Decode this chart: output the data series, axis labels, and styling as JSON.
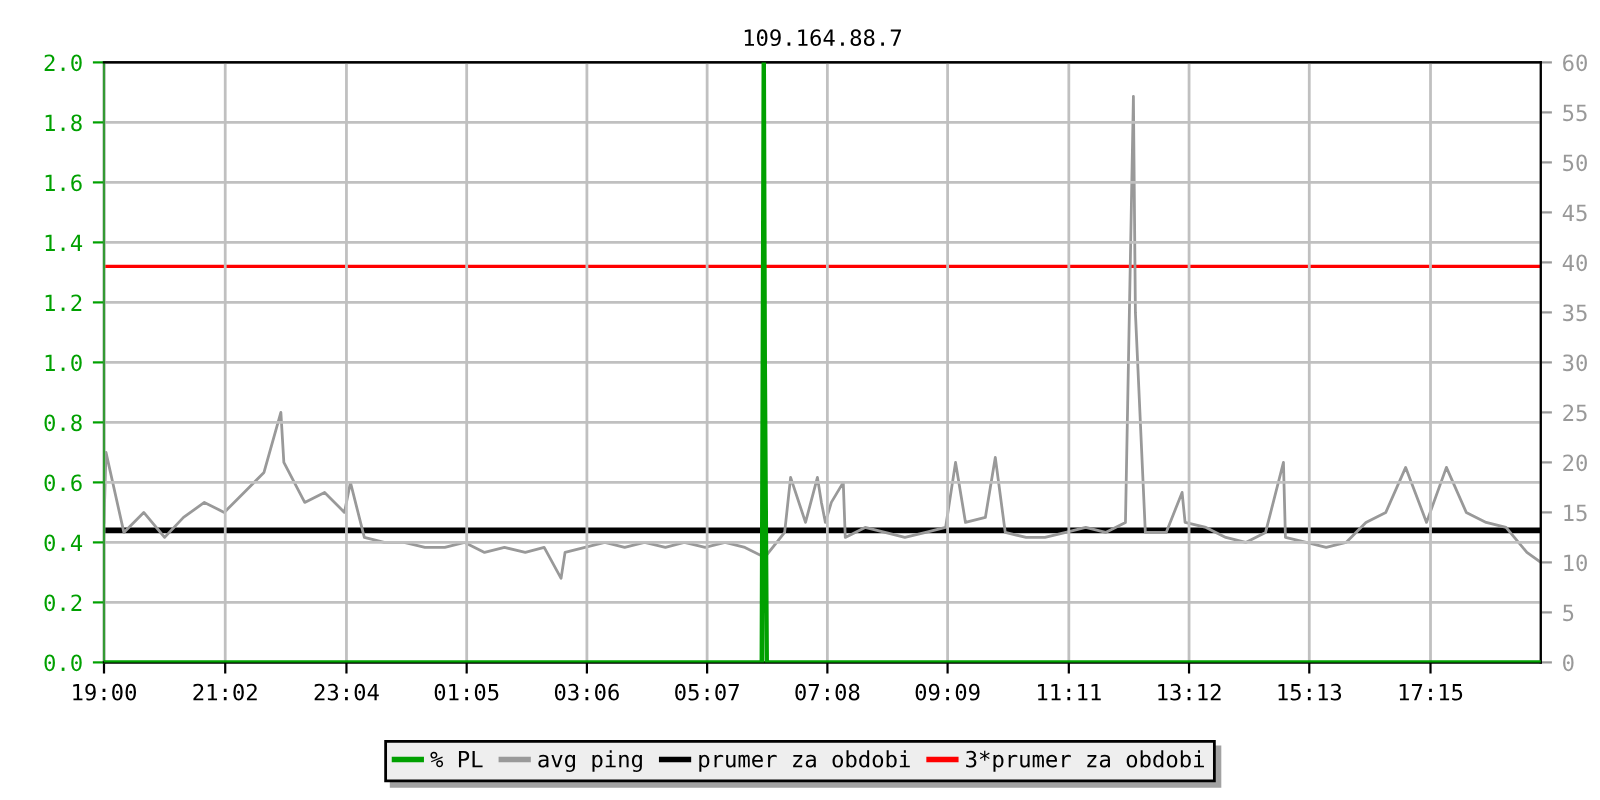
{
  "chart_data": {
    "type": "line",
    "title": "109.164.88.7",
    "xlim": [
      "2000-01-01T19:00",
      "2000-01-02T19:06"
    ],
    "xticks": [
      {
        "value": "2000-01-01T19:00",
        "label": "19:00"
      },
      {
        "value": "2000-01-01T21:02",
        "label": "21:02"
      },
      {
        "value": "2000-01-01T23:04",
        "label": "23:04"
      },
      {
        "value": "2000-01-02T01:05",
        "label": "01:05"
      },
      {
        "value": "2000-01-02T03:06",
        "label": "03:06"
      },
      {
        "value": "2000-01-02T05:07",
        "label": "05:07"
      },
      {
        "value": "2000-01-02T07:08",
        "label": "07:08"
      },
      {
        "value": "2000-01-02T09:09",
        "label": "09:09"
      },
      {
        "value": "2000-01-02T11:11",
        "label": "11:11"
      },
      {
        "value": "2000-01-02T13:12",
        "label": "13:12"
      },
      {
        "value": "2000-01-02T15:13",
        "label": "15:13"
      },
      {
        "value": "2000-01-02T17:15",
        "label": "17:15"
      }
    ],
    "ylim": [
      0,
      2.0
    ],
    "yticks": [
      {
        "value": 0,
        "label": "0.0"
      },
      {
        "value": 0.2,
        "label": "0.2"
      },
      {
        "value": 0.4,
        "label": "0.4"
      },
      {
        "value": 0.6,
        "label": "0.6"
      },
      {
        "value": 0.8,
        "label": "0.8"
      },
      {
        "value": 1.0,
        "label": "1.0"
      },
      {
        "value": 1.2,
        "label": "1.2"
      },
      {
        "value": 1.4,
        "label": "1.4"
      },
      {
        "value": 1.6,
        "label": "1.6"
      },
      {
        "value": 1.8,
        "label": "1.8"
      },
      {
        "value": 2.0,
        "label": "2.0"
      }
    ],
    "y2lim": [
      0,
      60
    ],
    "y2ticks": [
      0,
      5,
      10,
      15,
      20,
      25,
      30,
      35,
      40,
      45,
      50,
      55,
      60
    ],
    "grid": true,
    "legend": "bottom",
    "marker": "none",
    "line_style": "solid",
    "series": [
      {
        "name": "% PL",
        "color": "#00a000",
        "x": [
          "2000-01-01T19:00",
          "2000-01-02T06:02",
          "2000-01-02T06:04",
          "2000-01-02T06:05",
          "2000-01-02T06:07",
          "2000-01-02T19:06"
        ],
        "values": [
          0,
          0,
          2.0,
          1.0,
          0,
          0
        ]
      },
      {
        "name": "avg ping",
        "color": "#999999",
        "axis": "y2",
        "x": [
          "2000-01-01T19:00",
          "2000-01-01T19:02",
          "2000-01-01T19:20",
          "2000-01-01T19:40",
          "2000-01-01T20:01",
          "2000-01-01T20:20",
          "2000-01-01T20:41",
          "2000-01-01T21:01",
          "2000-01-01T21:21",
          "2000-01-01T21:41",
          "2000-01-01T21:58",
          "2000-01-01T22:01",
          "2000-01-01T22:22",
          "2000-01-01T22:42",
          "2000-01-01T23:02",
          "2000-01-01T23:08",
          "2000-01-01T23:22",
          "2000-01-01T23:42",
          "2000-01-02T00:02",
          "2000-01-02T00:23",
          "2000-01-02T00:43",
          "2000-01-02T01:03",
          "2000-01-02T01:23",
          "2000-01-02T01:43",
          "2000-01-02T02:04",
          "2000-01-02T02:23",
          "2000-01-02T02:40",
          "2000-01-02T02:44",
          "2000-01-02T03:04",
          "2000-01-02T03:24",
          "2000-01-02T03:44",
          "2000-01-02T04:04",
          "2000-01-02T04:25",
          "2000-01-02T04:44",
          "2000-01-02T05:05",
          "2000-01-02T05:25",
          "2000-01-02T05:45",
          "2000-01-02T06:05",
          "2000-01-02T06:25",
          "2000-01-02T06:31",
          "2000-01-02T06:46",
          "2000-01-02T06:58",
          "2000-01-02T07:02",
          "2000-01-02T07:06",
          "2000-01-02T07:12",
          "2000-01-02T07:24",
          "2000-01-02T07:26",
          "2000-01-02T07:46",
          "2000-01-02T08:06",
          "2000-01-02T08:26",
          "2000-01-02T08:47",
          "2000-01-02T09:07",
          "2000-01-02T09:17",
          "2000-01-02T09:27",
          "2000-01-02T09:47",
          "2000-01-02T09:57",
          "2000-01-02T10:07",
          "2000-01-02T10:28",
          "2000-01-02T10:47",
          "2000-01-02T11:08",
          "2000-01-02T11:28",
          "2000-01-02T11:48",
          "2000-01-02T12:08",
          "2000-01-02T12:16",
          "2000-01-02T12:18",
          "2000-01-02T12:28",
          "2000-01-02T12:49",
          "2000-01-02T13:05",
          "2000-01-02T13:08",
          "2000-01-02T13:29",
          "2000-01-02T13:49",
          "2000-01-02T14:09",
          "2000-01-02T14:29",
          "2000-01-02T14:47",
          "2000-01-02T14:49",
          "2000-01-02T15:10",
          "2000-01-02T15:30",
          "2000-01-02T15:50",
          "2000-01-02T16:10",
          "2000-01-02T16:30",
          "2000-01-02T16:50",
          "2000-01-02T17:11",
          "2000-01-02T17:31",
          "2000-01-02T17:51",
          "2000-01-02T18:11",
          "2000-01-02T18:31",
          "2000-01-02T18:52",
          "2000-01-02T19:06"
        ],
        "values": [
          14,
          21,
          13,
          15,
          12.5,
          14.5,
          16,
          15,
          17,
          19,
          25,
          20,
          16,
          17,
          15,
          18,
          12.5,
          12,
          12,
          11.5,
          11.5,
          12,
          11,
          11.5,
          11,
          11.5,
          8.4,
          11,
          11.5,
          12,
          11.5,
          12,
          11.5,
          12,
          11.5,
          12,
          11.5,
          10.5,
          13,
          18.5,
          14,
          18.5,
          16,
          14,
          16,
          18,
          12.5,
          13.5,
          13,
          12.5,
          13,
          13.5,
          20,
          14,
          14.5,
          20.5,
          13,
          12.5,
          12.5,
          13,
          13.5,
          13,
          14,
          56.6,
          35,
          13,
          13,
          17,
          14,
          13.5,
          12.5,
          12,
          13,
          20,
          12.5,
          12,
          11.5,
          12,
          14,
          15,
          19.5,
          14,
          19.5,
          15,
          14,
          13.5,
          11,
          10
        ]
      }
    ],
    "ref_lines": [
      {
        "axis": "y2",
        "value": 13.2,
        "label": "prumer za obdobi",
        "color": "#000000"
      },
      {
        "axis": "y2",
        "value": 39.6,
        "label": "3*prumer za obdobi",
        "color": "#ff0000"
      }
    ]
  }
}
